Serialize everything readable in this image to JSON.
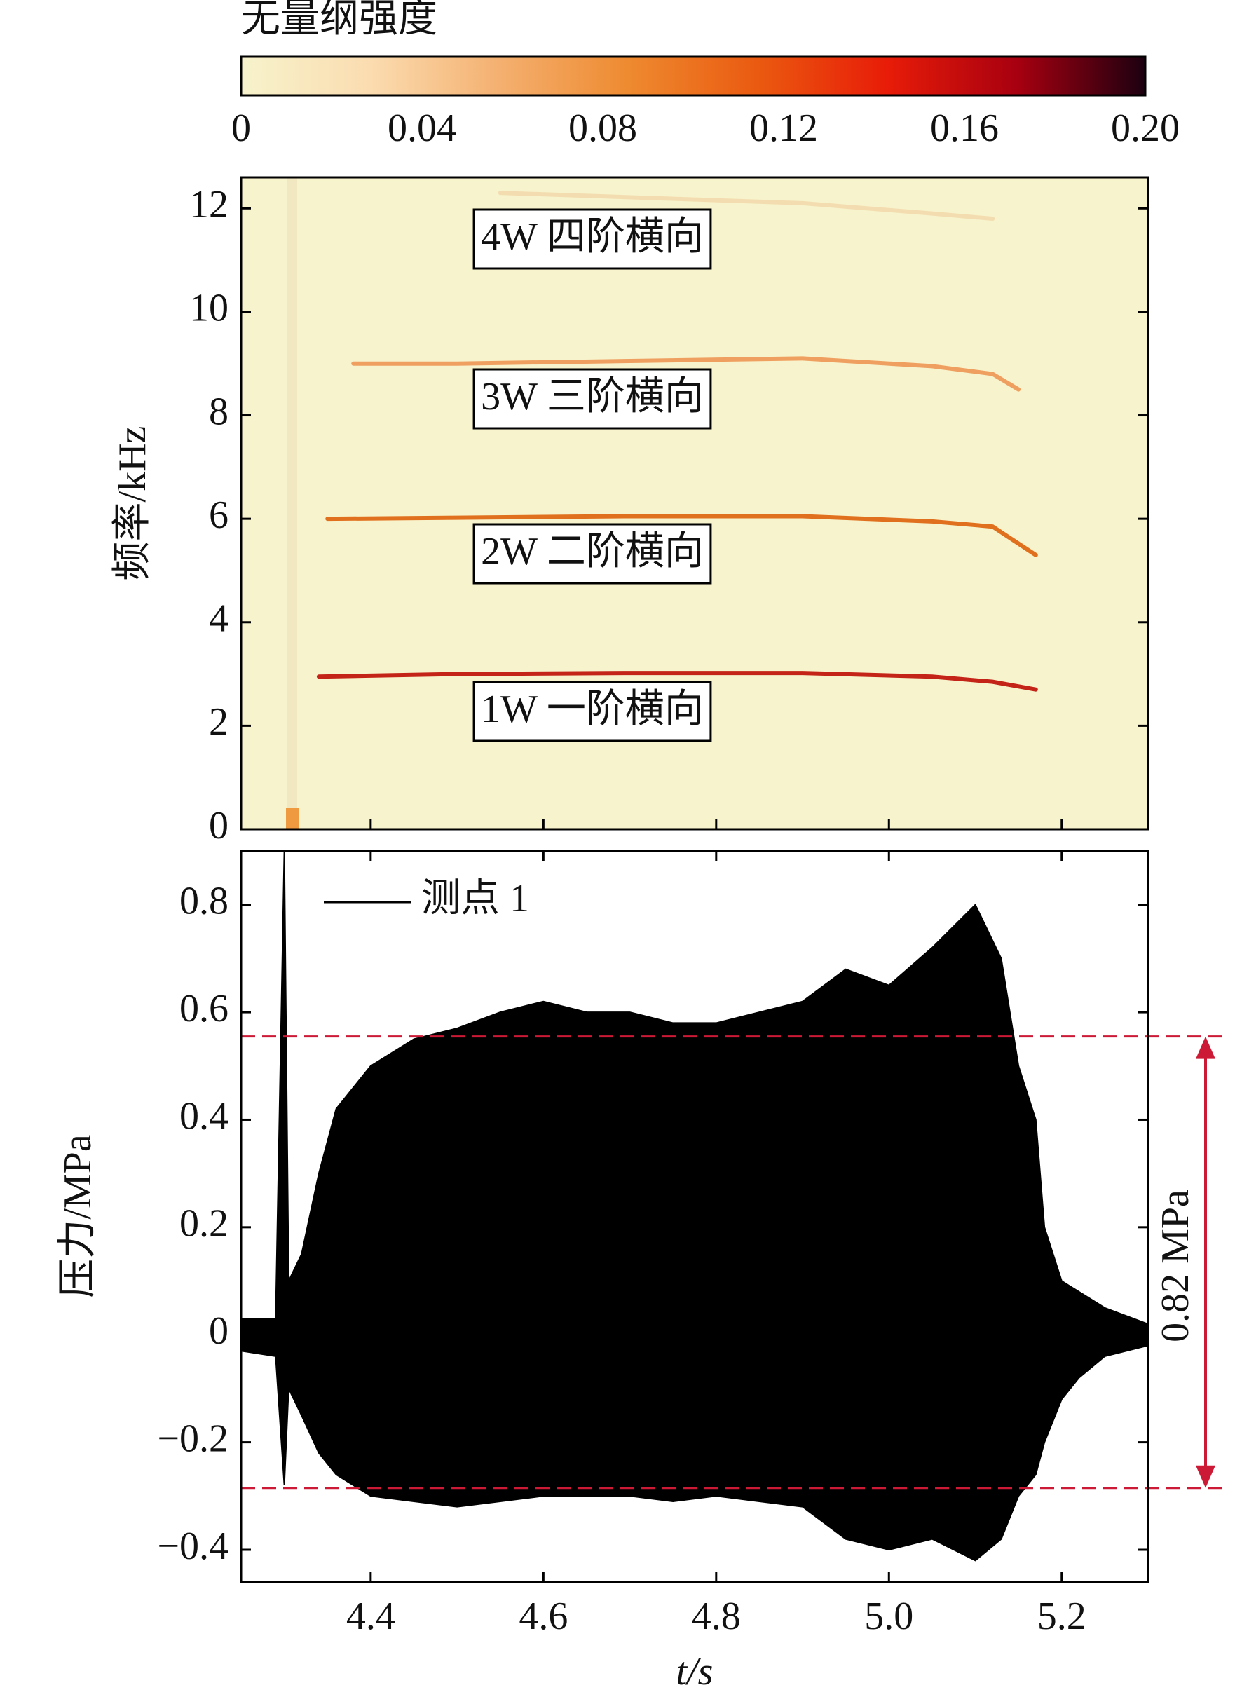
{
  "chart_data": [
    {
      "type": "heatmap",
      "ylabel": "频率/kHz",
      "xlim": [
        4.25,
        5.3
      ],
      "xticks": [
        4.4,
        4.6,
        4.8,
        5.0,
        5.2
      ],
      "ylim": [
        0,
        12.6
      ],
      "yticks": [
        0,
        2,
        4,
        6,
        8,
        10,
        12
      ],
      "colorbar": {
        "title": "无量纲强度",
        "lim": [
          0,
          0.2
        ],
        "ticks": [
          0,
          0.04,
          0.08,
          0.12,
          0.16,
          {
            "value": 0.2,
            "label": "0.20"
          }
        ],
        "colors": [
          "#f7f3cc",
          "#fbdcb0",
          "#f4b070",
          "#ee8a30",
          "#ea5a10",
          "#e81c08",
          "#a80010",
          "#1c0010"
        ]
      },
      "series": [
        {
          "name": "1W 一阶横向",
          "color": "#c42418",
          "x": [
            4.34,
            4.5,
            4.7,
            4.9,
            5.05,
            5.12,
            5.17
          ],
          "values": [
            2.95,
            3.0,
            3.02,
            3.02,
            2.95,
            2.85,
            2.7
          ]
        },
        {
          "name": "2W 二阶横向",
          "color": "#e0701e",
          "x": [
            4.35,
            4.5,
            4.7,
            4.9,
            5.05,
            5.12,
            5.17
          ],
          "values": [
            6.0,
            6.02,
            6.05,
            6.05,
            5.95,
            5.85,
            5.3
          ]
        },
        {
          "name": "3W 三阶横向",
          "color": "#efa060",
          "x": [
            4.38,
            4.5,
            4.7,
            4.9,
            5.05,
            5.12,
            5.15
          ],
          "values": [
            9.0,
            9.0,
            9.05,
            9.1,
            8.95,
            8.8,
            8.5
          ]
        },
        {
          "name": "4W 四阶横向",
          "color": "#f3ddb0",
          "x": [
            4.55,
            4.9,
            5.05,
            5.12
          ],
          "values": [
            12.3,
            12.1,
            11.9,
            11.8
          ]
        }
      ]
    },
    {
      "type": "line",
      "ylabel": "压力/MPa",
      "xlabel": "t/s",
      "xlim": [
        4.25,
        5.3
      ],
      "xticks": [
        4.4,
        4.6,
        4.8,
        {
          "value": 5,
          "label": "5.0"
        },
        5.2
      ],
      "ylim": [
        -0.46,
        0.9
      ],
      "yticks": [
        {
          "value": -0.4,
          "label": "−0.4"
        },
        {
          "value": -0.2,
          "label": "−0.2"
        },
        0,
        0.2,
        0.4,
        0.6,
        0.8
      ],
      "series": [
        {
          "name": "测点 1",
          "color": "#000000",
          "x": [
            4.25,
            4.29,
            4.3,
            4.305,
            4.32,
            4.34,
            4.36,
            4.4,
            4.45,
            4.5,
            4.55,
            4.6,
            4.65,
            4.7,
            4.75,
            4.8,
            4.85,
            4.9,
            4.95,
            5.0,
            5.05,
            5.1,
            5.13,
            5.15,
            5.17,
            5.18,
            5.2,
            5.22,
            5.25,
            5.3
          ],
          "values": [
            0.03,
            0.03,
            0.9,
            0.1,
            0.15,
            0.3,
            0.42,
            0.5,
            0.55,
            0.57,
            0.6,
            0.62,
            0.6,
            0.6,
            0.58,
            0.58,
            0.6,
            0.62,
            0.68,
            0.65,
            0.72,
            0.8,
            0.7,
            0.5,
            0.4,
            0.2,
            0.1,
            0.08,
            0.05,
            0.02
          ],
          "lower": [
            -0.03,
            -0.04,
            -0.28,
            -0.1,
            -0.15,
            -0.22,
            -0.26,
            -0.3,
            -0.31,
            -0.32,
            -0.31,
            -0.3,
            -0.3,
            -0.3,
            -0.31,
            -0.3,
            -0.31,
            -0.32,
            -0.38,
            -0.4,
            -0.38,
            -0.42,
            -0.38,
            -0.3,
            -0.26,
            -0.2,
            -0.12,
            -0.08,
            -0.04,
            -0.02
          ]
        }
      ],
      "reference_lines": {
        "values": [
          0.555,
          -0.285
        ],
        "color": "#cc1a36"
      },
      "annotation": "0.82 MPa"
    }
  ]
}
